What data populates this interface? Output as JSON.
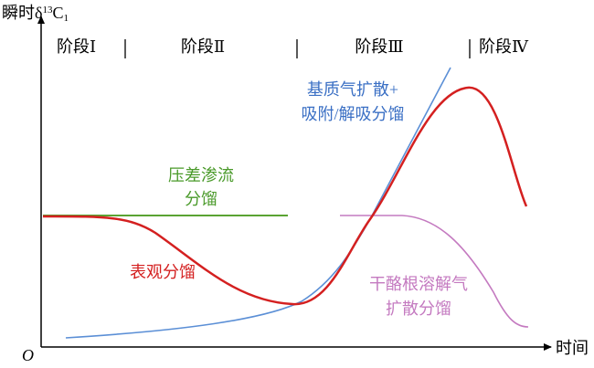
{
  "y_axis": {
    "prefix": "瞬时δ",
    "superscript": "13",
    "main": "C",
    "subscript": "1"
  },
  "x_axis": {
    "label": "时间",
    "origin": "O"
  },
  "stages": [
    "阶段Ⅰ",
    "阶段Ⅱ",
    "阶段Ⅲ",
    "阶段Ⅳ"
  ],
  "curves": {
    "matrix": [
      "基质气扩散+",
      "吸附/解吸分馏"
    ],
    "pressure": [
      "压差渗流",
      "分馏"
    ],
    "apparent": [
      "表观分馏"
    ],
    "kerogen": [
      "干酪根溶解气",
      "扩散分馏"
    ]
  }
}
